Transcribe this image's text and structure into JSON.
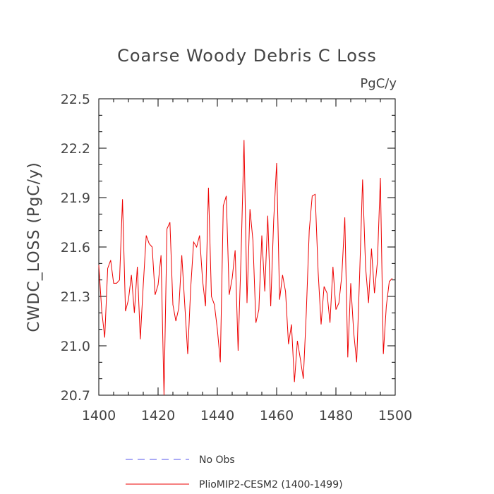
{
  "chart_data": {
    "type": "line",
    "title": "Coarse Woody Debris C Loss",
    "units": "PgC/y",
    "ylabel": "CWDC_LOSS  (PgC/y)",
    "xlabel": "",
    "xlim": [
      1400,
      1500
    ],
    "ylim": [
      20.7,
      22.5
    ],
    "x_ticks": [
      "1400",
      "1420",
      "1440",
      "1460",
      "1480",
      "1500"
    ],
    "y_ticks": [
      "20.7",
      "21.0",
      "21.3",
      "21.6",
      "21.9",
      "22.2",
      "22.5"
    ],
    "legend_position": "bottom",
    "series": [
      {
        "name": "No Obs",
        "color": "#5555ee",
        "style": "dashed",
        "x": [],
        "values": []
      },
      {
        "name": "PlioMIP2-CESM2 (1400-1499)",
        "color": "#ee0000",
        "style": "solid",
        "x": [
          1400,
          1401,
          1402,
          1403,
          1404,
          1405,
          1406,
          1407,
          1408,
          1409,
          1410,
          1411,
          1412,
          1413,
          1414,
          1415,
          1416,
          1417,
          1418,
          1419,
          1420,
          1421,
          1422,
          1423,
          1424,
          1425,
          1426,
          1427,
          1428,
          1429,
          1430,
          1431,
          1432,
          1433,
          1434,
          1435,
          1436,
          1437,
          1438,
          1439,
          1440,
          1441,
          1442,
          1443,
          1444,
          1445,
          1446,
          1447,
          1448,
          1449,
          1450,
          1451,
          1452,
          1453,
          1454,
          1455,
          1456,
          1457,
          1458,
          1459,
          1460,
          1461,
          1462,
          1463,
          1464,
          1465,
          1466,
          1467,
          1468,
          1469,
          1470,
          1471,
          1472,
          1473,
          1474,
          1475,
          1476,
          1477,
          1478,
          1479,
          1480,
          1481,
          1482,
          1483,
          1484,
          1485,
          1486,
          1487,
          1488,
          1489,
          1490,
          1491,
          1492,
          1493,
          1494,
          1495,
          1496,
          1497,
          1498,
          1499
        ],
        "values": [
          21.49,
          21.21,
          21.05,
          21.47,
          21.52,
          21.38,
          21.38,
          21.4,
          21.89,
          21.21,
          21.28,
          21.43,
          21.2,
          21.48,
          21.04,
          21.37,
          21.67,
          21.62,
          21.6,
          21.31,
          21.37,
          21.55,
          20.7,
          21.71,
          21.75,
          21.25,
          21.15,
          21.23,
          21.55,
          21.25,
          20.95,
          21.35,
          21.63,
          21.6,
          21.67,
          21.4,
          21.24,
          21.96,
          21.3,
          21.25,
          21.1,
          20.9,
          21.85,
          21.91,
          21.31,
          21.41,
          21.58,
          20.97,
          21.55,
          22.25,
          21.26,
          21.83,
          21.64,
          21.14,
          21.22,
          21.67,
          21.33,
          21.79,
          21.24,
          21.76,
          22.11,
          21.28,
          21.43,
          21.33,
          21.01,
          21.13,
          20.78,
          21.03,
          20.92,
          20.8,
          21.2,
          21.7,
          21.91,
          21.92,
          21.45,
          21.13,
          21.36,
          21.32,
          21.14,
          21.48,
          21.22,
          21.26,
          21.43,
          21.78,
          20.93,
          21.38,
          21.08,
          20.9,
          21.43,
          22.01,
          21.48,
          21.26,
          21.59,
          21.32,
          21.51,
          22.02,
          20.95,
          21.24,
          21.39,
          21.41
        ]
      }
    ]
  }
}
